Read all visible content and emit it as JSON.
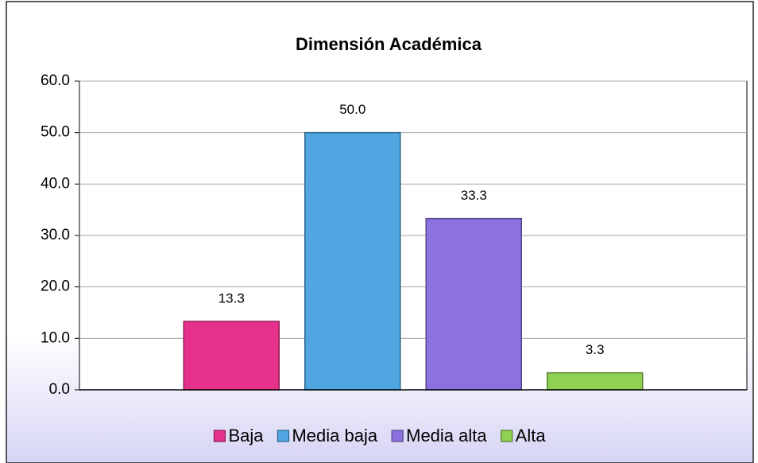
{
  "chart_data": {
    "type": "bar",
    "title": "Dimensión Académica",
    "categories": [
      null
    ],
    "series": [
      {
        "name": "Baja",
        "color": "#e6318c",
        "values": [
          13.3
        ],
        "value_labels": [
          "13.3"
        ]
      },
      {
        "name": "Media baja",
        "color": "#4fa6e0",
        "values": [
          50
        ],
        "value_labels": [
          "50.0"
        ]
      },
      {
        "name": "Media alta",
        "color": "#8b72e0",
        "values": [
          33.3
        ],
        "value_labels": [
          "33.3"
        ]
      },
      {
        "name": "Alta",
        "color": "#8fd150",
        "values": [
          3.3
        ],
        "value_labels": [
          "3.3"
        ]
      }
    ],
    "ylim": [
      0,
      60
    ],
    "yticks": [
      {
        "value": 0,
        "label": "0.0"
      },
      {
        "value": 10,
        "label": "10.0"
      },
      {
        "value": 20,
        "label": "20.0"
      },
      {
        "value": 30,
        "label": "30.0"
      },
      {
        "value": 40,
        "label": "40.0"
      },
      {
        "value": 50,
        "label": "50.0"
      },
      {
        "value": 60,
        "label": "60.0"
      }
    ],
    "grid": true,
    "legend": "bottom"
  }
}
